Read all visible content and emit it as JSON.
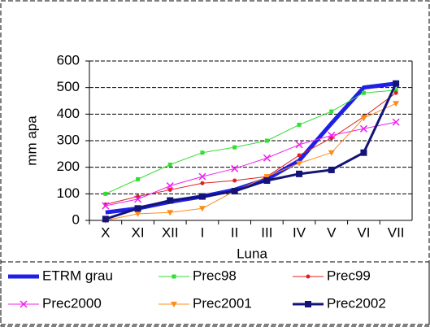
{
  "chart_data": {
    "type": "line",
    "x_label": "Luna",
    "y_label": "mm apa",
    "categories": [
      "X",
      "XI",
      "XII",
      "I",
      "II",
      "III",
      "IV",
      "V",
      "VI",
      "VII"
    ],
    "ylim": [
      0,
      600
    ],
    "yticks": [
      0,
      100,
      200,
      300,
      400,
      500,
      600
    ],
    "grid": true,
    "series": [
      {
        "name": "ETRM grau",
        "color": "#1f1fe6",
        "width": 5,
        "marker": "none",
        "values": [
          30,
          45,
          70,
          90,
          115,
          155,
          225,
          365,
          500,
          515
        ]
      },
      {
        "name": "Prec98",
        "color": "#33dd33",
        "width": 1,
        "marker": "square",
        "values": [
          100,
          155,
          210,
          255,
          275,
          300,
          360,
          410,
          480,
          490
        ]
      },
      {
        "name": "Prec99",
        "color": "#e02020",
        "width": 1,
        "marker": "circle",
        "values": [
          60,
          90,
          115,
          140,
          150,
          165,
          245,
          310,
          390,
          480
        ]
      },
      {
        "name": "Prec2000",
        "color": "#ee22ee",
        "width": 1,
        "marker": "x",
        "values": [
          55,
          80,
          130,
          165,
          195,
          235,
          285,
          320,
          345,
          370
        ]
      },
      {
        "name": "Prec2001",
        "color": "#ff8c1a",
        "width": 1,
        "marker": "triangle",
        "values": [
          0,
          25,
          30,
          45,
          110,
          165,
          215,
          255,
          385,
          440
        ]
      },
      {
        "name": "Prec2002",
        "color": "#141478",
        "width": 3,
        "marker": "square-big",
        "values": [
          5,
          45,
          75,
          90,
          110,
          150,
          175,
          190,
          255,
          515
        ]
      }
    ]
  }
}
